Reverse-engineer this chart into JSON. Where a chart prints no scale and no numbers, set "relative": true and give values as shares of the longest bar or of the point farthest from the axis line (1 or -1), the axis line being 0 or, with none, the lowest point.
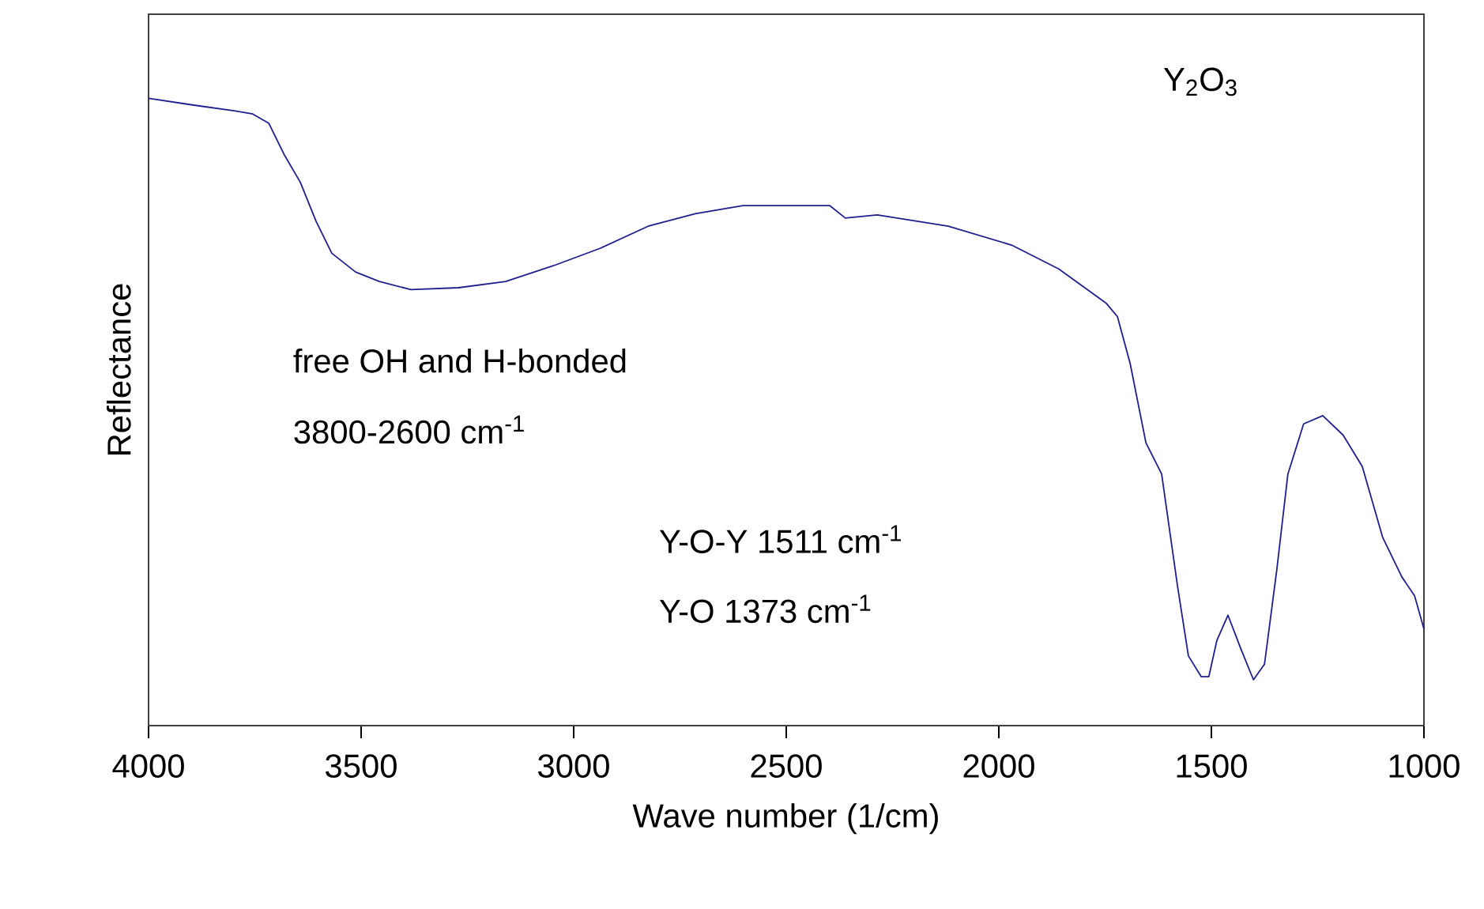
{
  "chart_data": {
    "type": "line",
    "relative": true,
    "xlabel": "Wave number (1/cm)",
    "ylabel": "Reflectance",
    "xlim": [
      4000,
      1000
    ],
    "xticks": [
      4000,
      3500,
      3000,
      2500,
      2000,
      1500,
      1000
    ],
    "annotations": [
      "Y$_{2}$O$_{3}$",
      "free OH and H-bonded",
      "3800-2600 cm$^{-1}$",
      "Y-O-Y 1511 cm$^{-1}$",
      "Y-O 1373 cm$^{-1}$"
    ],
    "marker": "none",
    "line_style": "solid",
    "grid": false,
    "series": [
      {
        "color": "#1f1f8f",
        "x": [
          4000,
          3903,
          3799,
          3755,
          3717,
          3680,
          3643,
          3606,
          3569,
          3513,
          3457,
          3383,
          3271,
          3160,
          3048,
          2937,
          2825,
          2714,
          2602,
          2491,
          2398,
          2361,
          2286,
          2119,
          1970,
          1859,
          1747,
          1721,
          1691,
          1654,
          1617,
          1580,
          1554,
          1524,
          1506,
          1487,
          1461,
          1431,
          1401,
          1375,
          1346,
          1320,
          1283,
          1238,
          1190,
          1145,
          1097,
          1052,
          1022,
          1000
        ],
        "values": [
          1.0,
          0.99,
          0.98,
          0.975,
          0.96,
          0.909,
          0.866,
          0.804,
          0.753,
          0.723,
          0.708,
          0.695,
          0.698,
          0.708,
          0.733,
          0.761,
          0.796,
          0.816,
          0.829,
          0.829,
          0.829,
          0.809,
          0.814,
          0.796,
          0.766,
          0.728,
          0.673,
          0.652,
          0.577,
          0.451,
          0.401,
          0.224,
          0.111,
          0.078,
          0.078,
          0.136,
          0.176,
          0.123,
          0.073,
          0.098,
          0.249,
          0.401,
          0.481,
          0.494,
          0.463,
          0.413,
          0.3,
          0.237,
          0.207,
          0.154
        ]
      }
    ]
  }
}
